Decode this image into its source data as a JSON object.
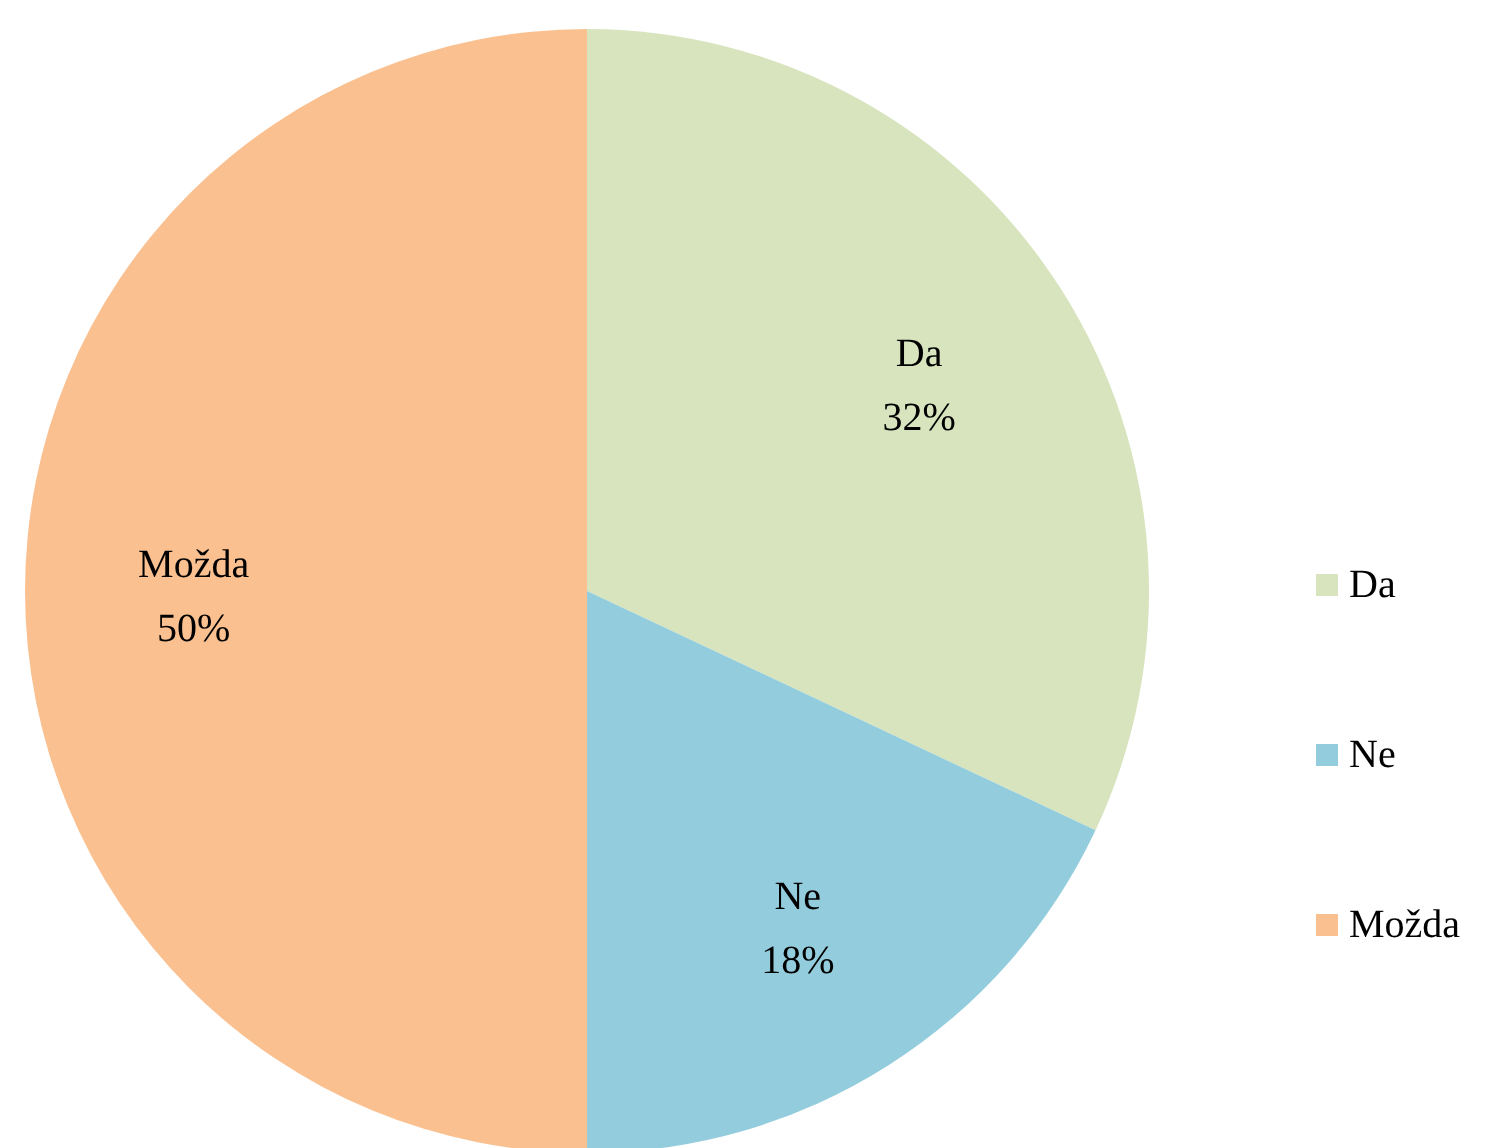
{
  "chart_data": {
    "type": "pie",
    "categories": [
      "Da",
      "Ne",
      "Možda"
    ],
    "values": [
      32,
      18,
      50
    ],
    "colors": [
      "#d7e4bd",
      "#93cddd",
      "#fac090"
    ],
    "value_labels": [
      "32%",
      "18%",
      "50%"
    ],
    "legend": "right"
  }
}
